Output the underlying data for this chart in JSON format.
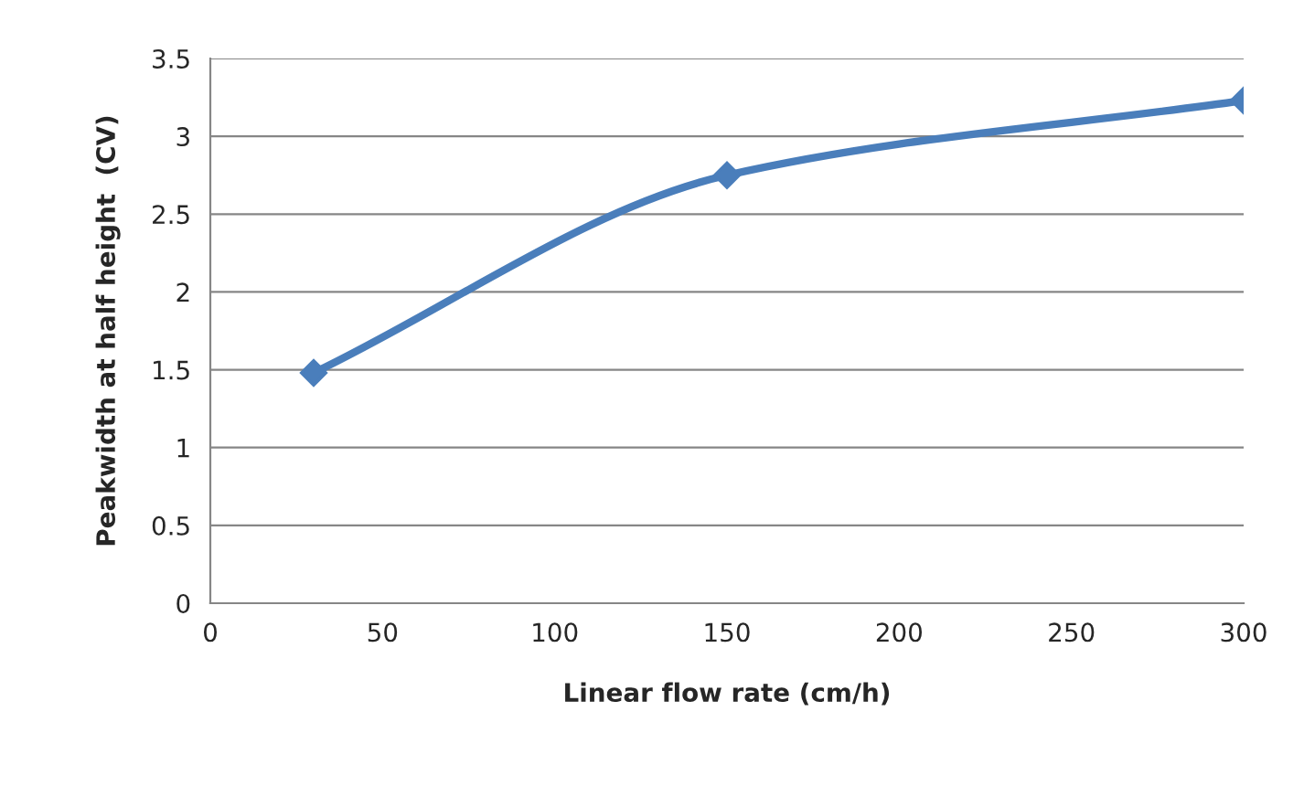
{
  "chart_data": {
    "type": "line",
    "xlabel": "Linear flow rate (cm/h)",
    "ylabel": "Peakwidth at half height  (CV)",
    "x": [
      30,
      150,
      300
    ],
    "series": [
      {
        "color": "#4a7ebb",
        "values": [
          1.48,
          2.75,
          3.23
        ]
      }
    ],
    "xlim": [
      0,
      300
    ],
    "xticks": [
      0,
      50,
      100,
      150,
      200,
      250,
      300
    ],
    "ylim": [
      0,
      3.5
    ],
    "yticks": [
      0,
      0.5,
      1,
      1.5,
      2,
      2.5,
      3,
      3.5
    ],
    "grid": "y",
    "marker": "diamond",
    "line_style": "solid",
    "legend": false
  }
}
